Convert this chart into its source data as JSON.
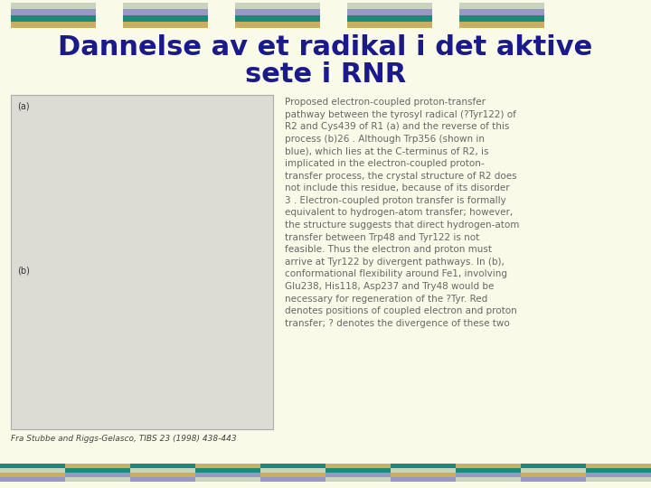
{
  "background_color": "#FAFAE8",
  "title_line1": "Dannelse av et radikal i det aktive",
  "title_line2": "sete i RNR",
  "title_color": "#1a1a8c",
  "title_fontsize": 22,
  "body_text": "Proposed electron-coupled proton-transfer\npathway between the tyrosyl radical (?Tyr122) of\nR2 and Cys439 of R1 (a) and the reverse of this\nprocess (b)26 . Although Trp356 (shown in\nblue), which lies at the C-terminus of R2, is\nimplicated in the electron-coupled proton-\ntransfer process, the crystal structure of R2 does\nnot include this residue, because of its disorder\n3 . Electron-coupled proton transfer is formally\nequivalent to hydrogen-atom transfer; however,\nthe structure suggests that direct hydrogen-atom\ntransfer between Trp48 and Tyr122 is not\nfeasible. Thus the electron and proton must\narrive at Tyr122 by divergent pathways. In (b),\nconformational flexibility around Fe1, involving\nGlu238, His118, Asp237 and Try48 would be\nnecessary for regeneration of the ?Tyr. Red\ndenotes positions of coupled electron and proton\ntransfer; ? denotes the divergence of these two",
  "body_text_color": "#666666",
  "body_fontsize": 7.5,
  "caption_text": "Fra Stubbe and Riggs-Gelasco, TIBS 23 (1998) 438-443",
  "caption_color": "#444444",
  "caption_fontsize": 6.5,
  "image_placeholder_color": "#dcdcd4",
  "image_border_color": "#aaaaaa",
  "n_header_blocks": 5,
  "header_block_colors": [
    [
      "#c8d4be",
      "#9898c4",
      "#208878",
      "#c8b060"
    ],
    [
      "#c8d4be",
      "#9898c4",
      "#208878",
      "#c8b060"
    ],
    [
      "#c8d4be",
      "#9898c4",
      "#208878",
      "#c8b060"
    ],
    [
      "#c8d4be",
      "#9898c4",
      "#208878",
      "#c8b060"
    ],
    [
      "#c8d4be",
      "#9898c4",
      "#208878",
      "#c8b060"
    ]
  ],
  "footer_block_colors": [
    [
      "#208878",
      "#c8d4be",
      "#c8b060",
      "#9898c4"
    ],
    [
      "#c8b060",
      "#208878",
      "#9898c4",
      "#c8d4be"
    ],
    [
      "#208878",
      "#c8d4be",
      "#c8b060",
      "#9898c4"
    ],
    [
      "#c8b060",
      "#208878",
      "#9898c4",
      "#c8d4be"
    ],
    [
      "#208878",
      "#c8d4be",
      "#c8b060",
      "#9898c4"
    ],
    [
      "#c8b060",
      "#208878",
      "#9898c4",
      "#c8d4be"
    ],
    [
      "#208878",
      "#c8d4be",
      "#c8b060",
      "#9898c4"
    ],
    [
      "#c8b060",
      "#208878",
      "#9898c4",
      "#c8d4be"
    ],
    [
      "#208878",
      "#c8d4be",
      "#c8b060",
      "#9898c4"
    ],
    [
      "#c8b060",
      "#208878",
      "#9898c4",
      "#c8d4be"
    ]
  ]
}
